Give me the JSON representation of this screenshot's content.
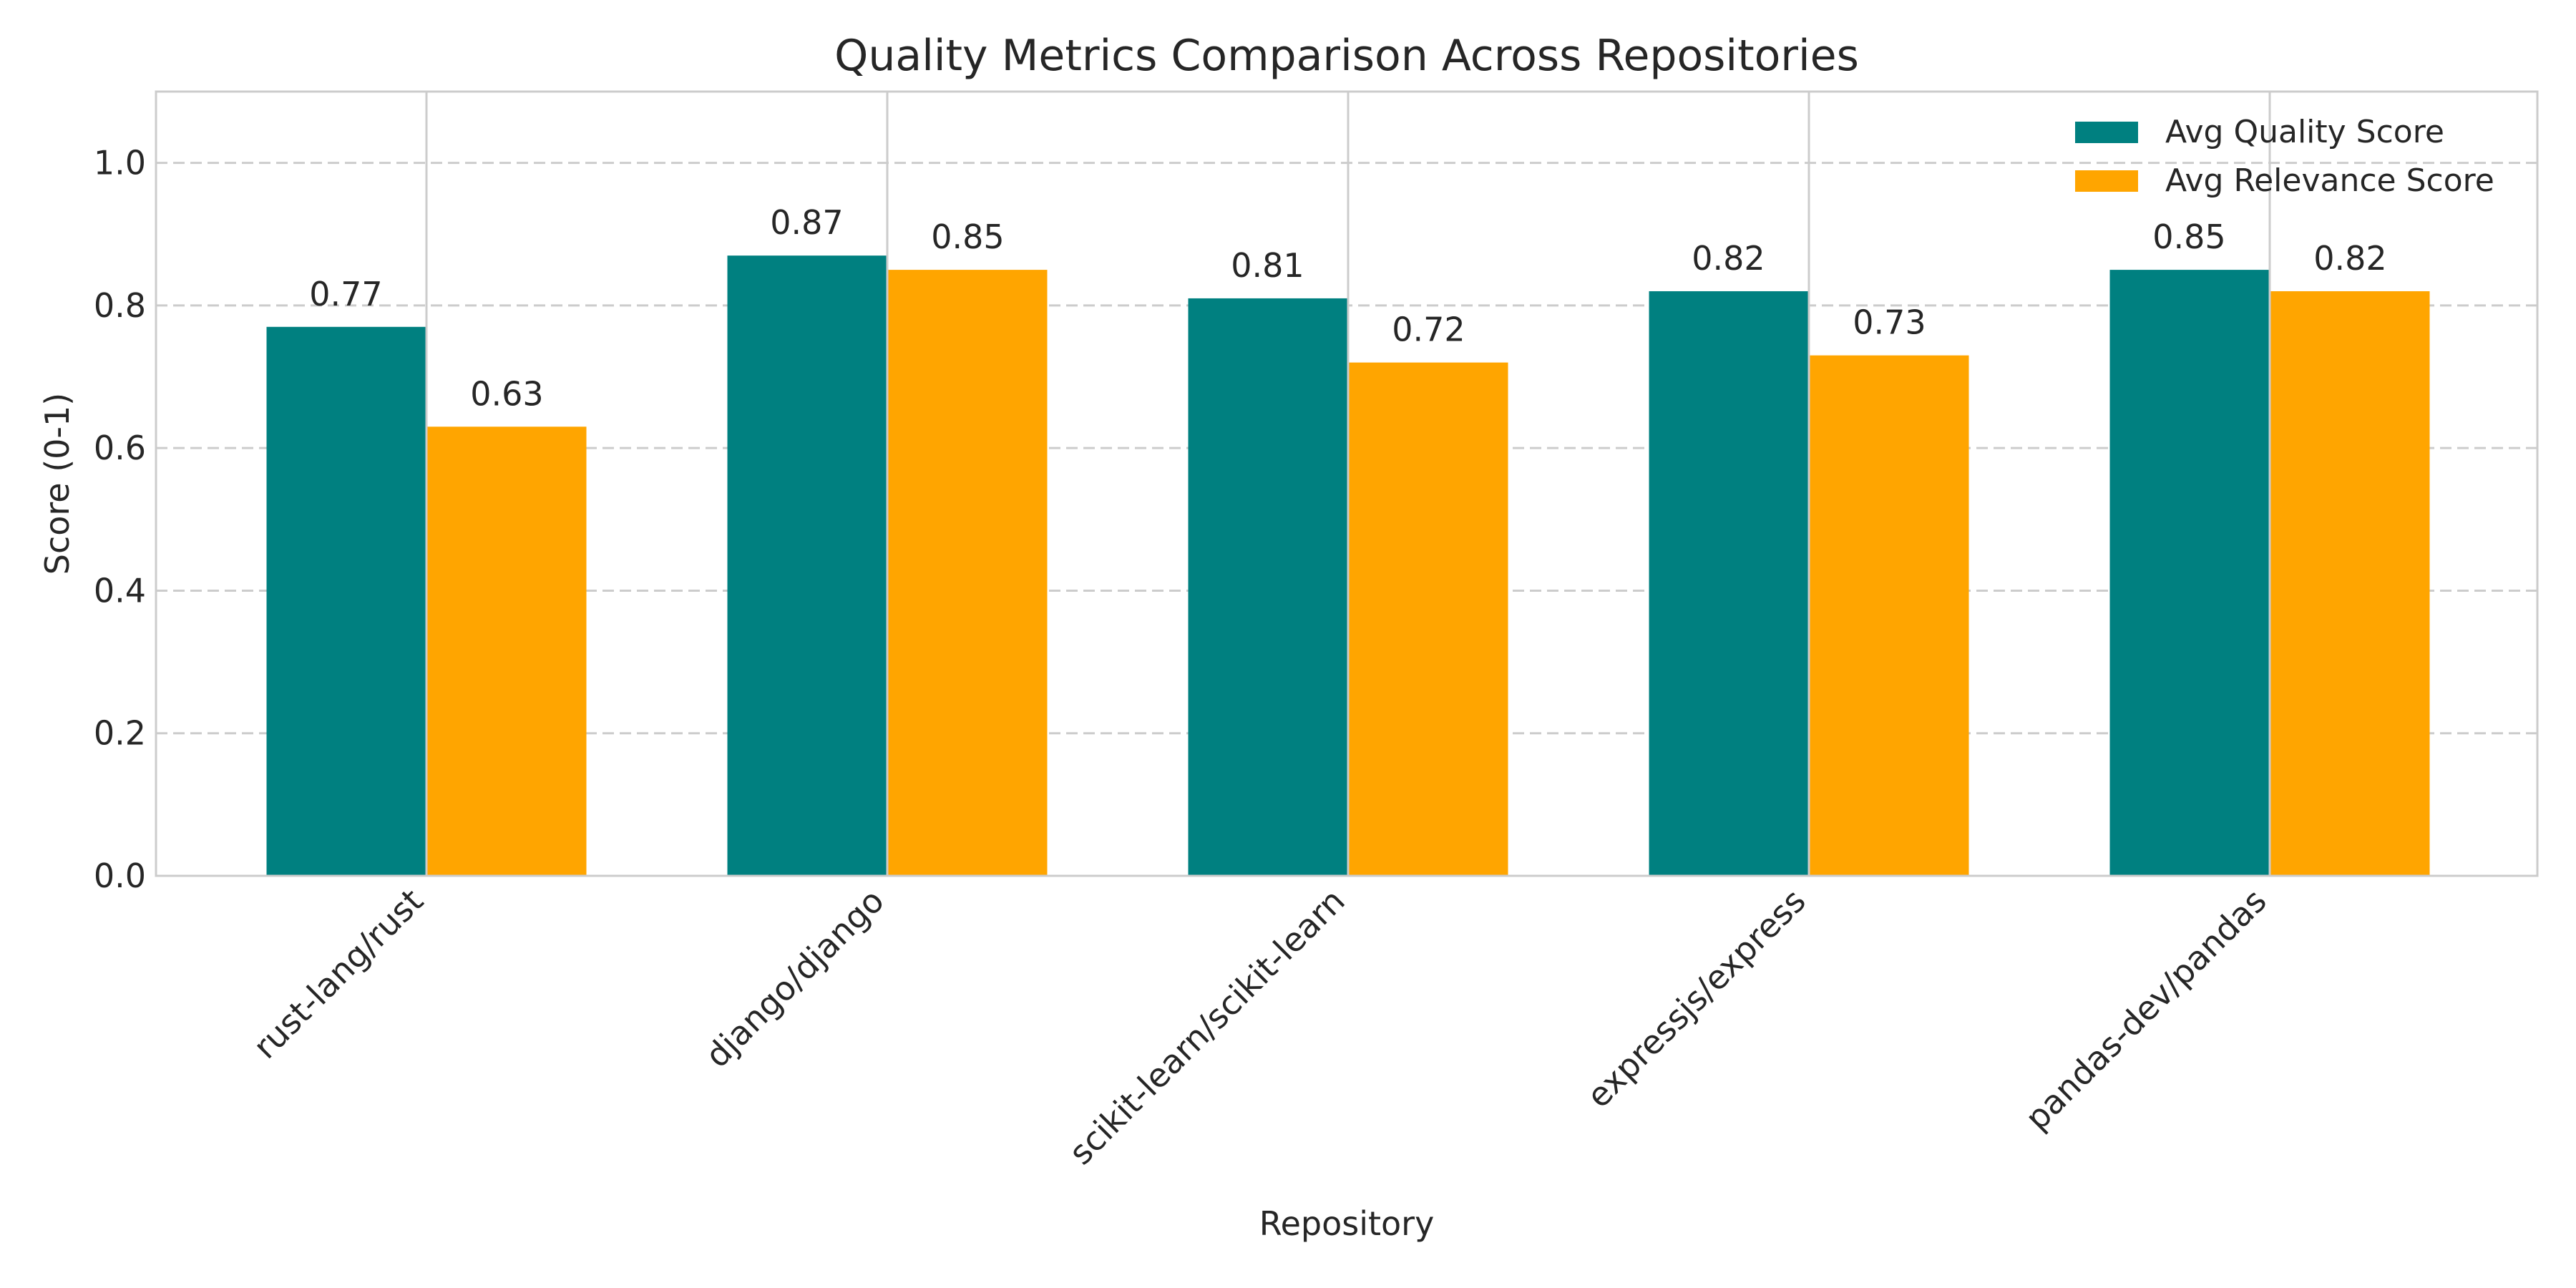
{
  "chart_data": {
    "type": "bar",
    "title": "Quality Metrics Comparison Across Repositories",
    "xlabel": "Repository",
    "ylabel": "Score (0-1)",
    "categories": [
      "rust-lang/rust",
      "django/django",
      "scikit-learn/scikit-learn",
      "expressjs/express",
      "pandas-dev/pandas"
    ],
    "series": [
      {
        "name": "Avg Quality Score",
        "color": "#008080",
        "values": [
          0.77,
          0.87,
          0.81,
          0.82,
          0.85
        ],
        "labels": [
          "0.77",
          "0.87",
          "0.81",
          "0.82",
          "0.85"
        ]
      },
      {
        "name": "Avg Relevance Score",
        "color": "#FFA500",
        "values": [
          0.63,
          0.85,
          0.72,
          0.73,
          0.82
        ],
        "labels": [
          "0.63",
          "0.85",
          "0.72",
          "0.73",
          "0.82"
        ]
      }
    ],
    "ylim": [
      0,
      1.1
    ],
    "yticks": [
      0.0,
      0.2,
      0.4,
      0.6,
      0.8,
      1.0
    ],
    "ytick_labels": [
      "0.0",
      "0.2",
      "0.4",
      "0.6",
      "0.8",
      "1.0"
    ],
    "grid": {
      "y": "dashed",
      "x": "solid"
    },
    "legend_position": "top-right"
  }
}
